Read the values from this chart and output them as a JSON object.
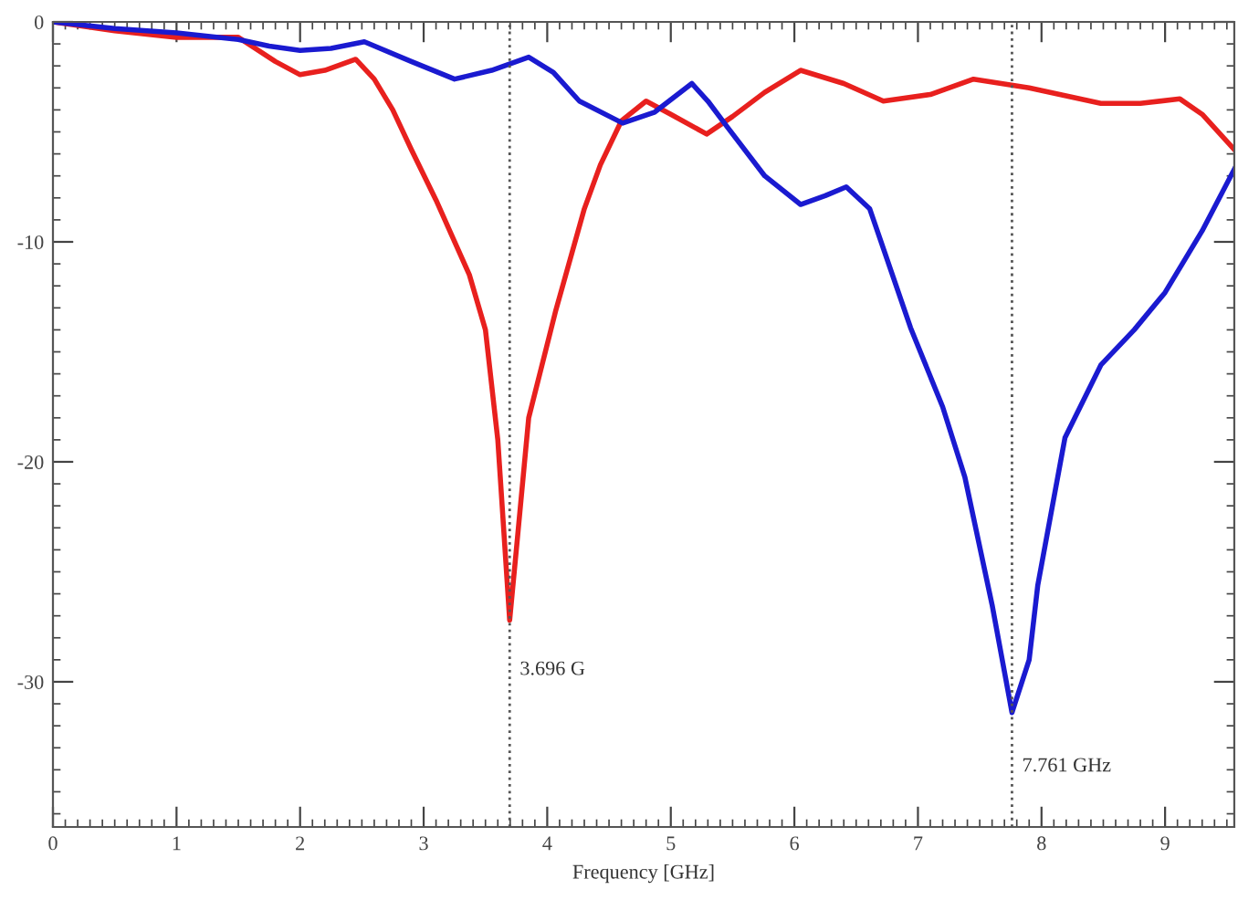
{
  "chart_data": {
    "type": "line",
    "xlabel": "Frequency [GHz]",
    "xlim": [
      0,
      9.56
    ],
    "ylim": [
      -36.6,
      0
    ],
    "xticks": [
      0,
      1,
      2,
      3,
      4,
      5,
      6,
      7,
      8,
      9
    ],
    "yticks": [
      0,
      -10,
      -20,
      -30
    ],
    "grid": false,
    "legend": false,
    "marker": "none",
    "line_style": "solid",
    "series": [
      {
        "color": "#e8201e",
        "x": [
          0,
          0.5,
          1,
          1.5,
          1.8,
          2.0,
          2.2,
          2.45,
          2.6,
          2.75,
          2.9,
          3.1,
          3.37,
          3.5,
          3.6,
          3.696,
          3.75,
          3.85,
          4.07,
          4.3,
          4.43,
          4.6,
          4.8,
          5.0,
          5.29,
          5.5,
          5.76,
          6.05,
          6.4,
          6.72,
          7.1,
          7.45,
          7.9,
          8.48,
          8.8,
          9.12,
          9.3,
          9.56
        ],
        "values": [
          0,
          -0.4,
          -0.7,
          -0.7,
          -1.8,
          -2.4,
          -2.2,
          -1.7,
          -2.6,
          -4,
          -5.8,
          -8.1,
          -11.5,
          -14,
          -19,
          -27.2,
          -24,
          -18,
          -13.1,
          -8.5,
          -6.5,
          -4.5,
          -3.6,
          -4.2,
          -5.1,
          -4.3,
          -3.2,
          -2.2,
          -2.8,
          -3.6,
          -3.3,
          -2.6,
          -3,
          -3.7,
          -3.7,
          -3.5,
          -4.2,
          -5.8
        ]
      },
      {
        "color": "#1a1ad0",
        "x": [
          0,
          0.5,
          1,
          1.5,
          1.75,
          2.0,
          2.25,
          2.52,
          2.9,
          3.25,
          3.55,
          3.85,
          4.05,
          4.26,
          4.61,
          4.87,
          5.17,
          5.3,
          5.46,
          5.76,
          6.05,
          6.25,
          6.42,
          6.61,
          6.94,
          7.2,
          7.38,
          7.6,
          7.761,
          7.9,
          7.97,
          8.19,
          8.48,
          8.75,
          9.0,
          9.3,
          9.56
        ],
        "values": [
          0,
          -0.3,
          -0.5,
          -0.8,
          -1.1,
          -1.3,
          -1.2,
          -0.9,
          -1.8,
          -2.6,
          -2.2,
          -1.6,
          -2.3,
          -3.6,
          -4.6,
          -4.1,
          -2.8,
          -3.6,
          -4.8,
          -7.0,
          -8.3,
          -7.9,
          -7.5,
          -8.5,
          -13.9,
          -17.5,
          -20.7,
          -26.5,
          -31.4,
          -29,
          -25.6,
          -18.9,
          -15.6,
          -14,
          -12.3,
          -9.5,
          -6.7
        ]
      }
    ],
    "ref_lines": [
      {
        "axis": "x",
        "value": 3.696,
        "label": "3.696 G",
        "color": "#555555",
        "line_style": "dotted"
      },
      {
        "axis": "x",
        "value": 7.761,
        "label": "7.761 GHz",
        "color": "#555555",
        "line_style": "dotted"
      }
    ]
  }
}
